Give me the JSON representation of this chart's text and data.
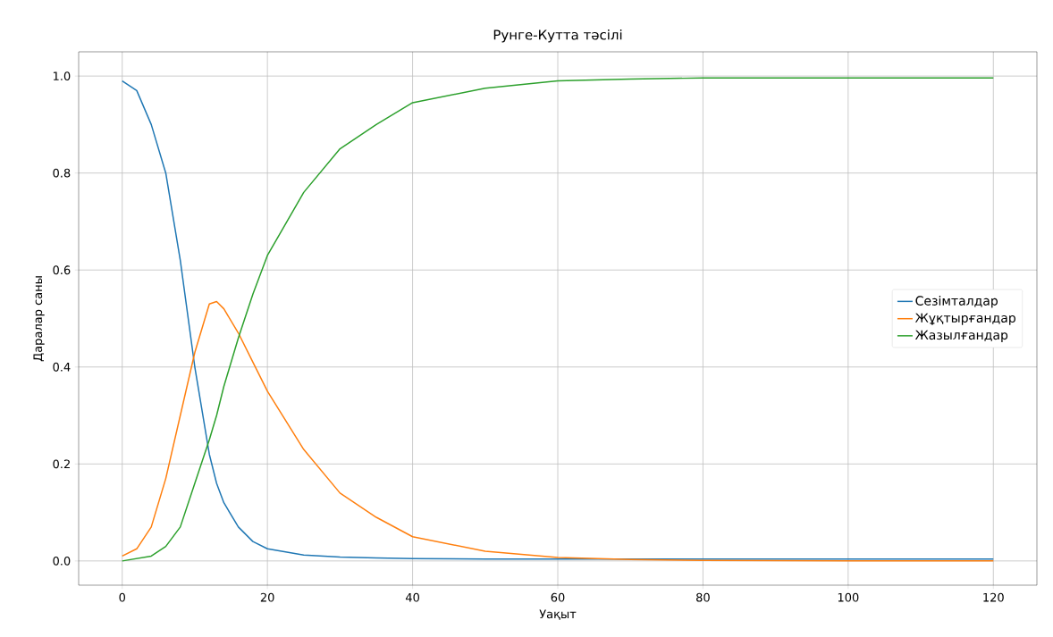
{
  "chart_data": {
    "type": "line",
    "title": "Рунге-Кутта тәсілі",
    "xlabel": "Уақыт",
    "ylabel": "Даралар саны",
    "x": [
      0,
      2,
      4,
      6,
      8,
      10,
      12,
      13,
      14,
      16,
      18,
      20,
      25,
      30,
      35,
      40,
      50,
      60,
      70,
      80,
      100,
      120
    ],
    "series": [
      {
        "name": "Сезімталдар",
        "color": "#1f77b4",
        "values": [
          0.99,
          0.97,
          0.9,
          0.8,
          0.62,
          0.4,
          0.22,
          0.16,
          0.12,
          0.07,
          0.04,
          0.025,
          0.012,
          0.008,
          0.006,
          0.005,
          0.004,
          0.004,
          0.004,
          0.004,
          0.004,
          0.004
        ]
      },
      {
        "name": "Жұқтырғандар",
        "color": "#ff7f0e",
        "values": [
          0.01,
          0.025,
          0.07,
          0.17,
          0.3,
          0.43,
          0.53,
          0.535,
          0.52,
          0.47,
          0.41,
          0.35,
          0.23,
          0.14,
          0.09,
          0.05,
          0.02,
          0.007,
          0.003,
          0.001,
          0.0,
          0.0
        ]
      },
      {
        "name": "Жазылғандар",
        "color": "#2ca02c",
        "values": [
          0.0,
          0.005,
          0.01,
          0.03,
          0.07,
          0.16,
          0.25,
          0.3,
          0.36,
          0.46,
          0.55,
          0.63,
          0.76,
          0.85,
          0.9,
          0.945,
          0.975,
          0.99,
          0.994,
          0.996,
          0.996,
          0.996
        ]
      }
    ],
    "xlim": [
      -6,
      126
    ],
    "ylim": [
      -0.05,
      1.05
    ],
    "xticks": [
      0,
      20,
      40,
      60,
      80,
      100,
      120
    ],
    "yticks": [
      {
        "value": 0,
        "label": "0.0"
      },
      {
        "value": 0.2,
        "label": "0.2"
      },
      {
        "value": 0.4,
        "label": "0.4"
      },
      {
        "value": 0.6,
        "label": "0.6"
      },
      {
        "value": 0.8,
        "label": "0.8"
      },
      {
        "value": 1.0,
        "label": "1.0"
      }
    ],
    "grid": true,
    "legend": "right",
    "marker": "none",
    "line_style": "solid"
  }
}
